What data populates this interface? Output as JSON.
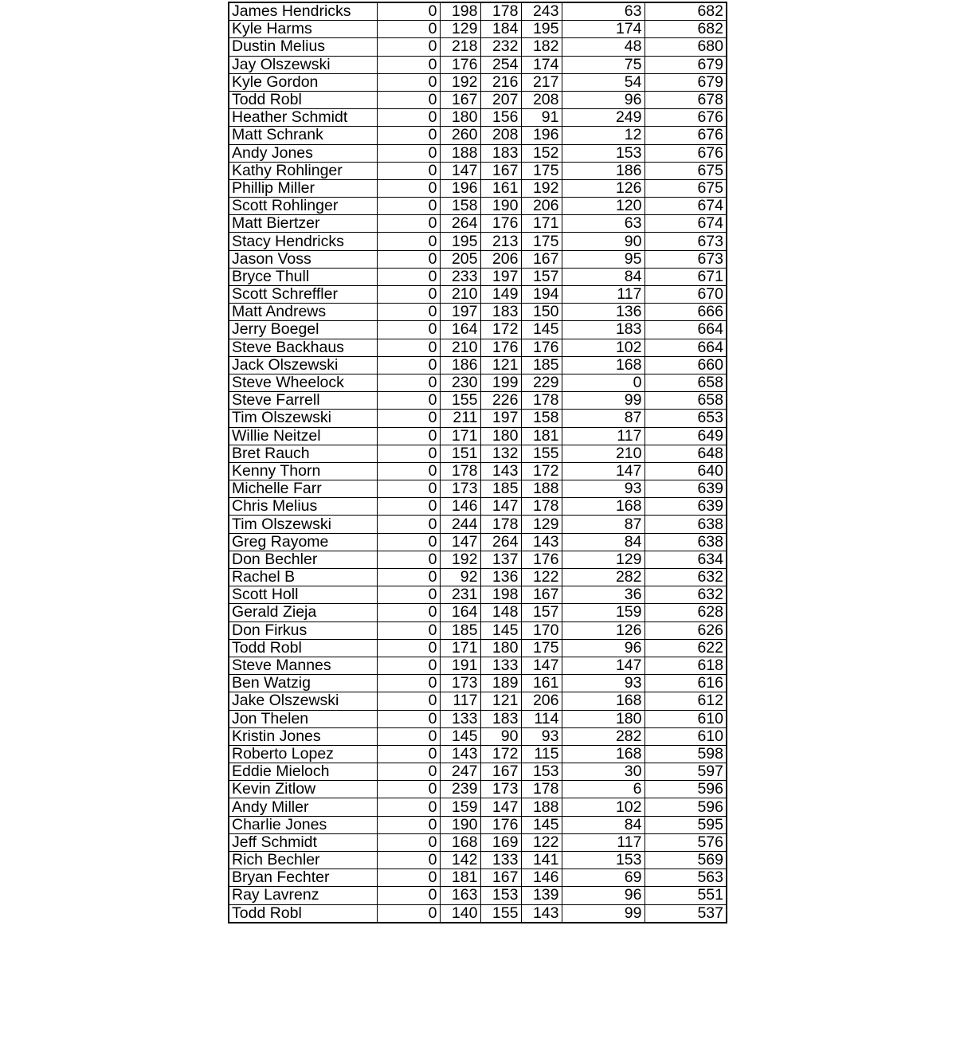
{
  "rows": [
    [
      "James Hendricks",
      0,
      198,
      178,
      243,
      63,
      682
    ],
    [
      "Kyle Harms",
      0,
      129,
      184,
      195,
      174,
      682
    ],
    [
      "Dustin Melius",
      0,
      218,
      232,
      182,
      48,
      680
    ],
    [
      "Jay Olszewski",
      0,
      176,
      254,
      174,
      75,
      679
    ],
    [
      "Kyle Gordon",
      0,
      192,
      216,
      217,
      54,
      679
    ],
    [
      "Todd Robl",
      0,
      167,
      207,
      208,
      96,
      678
    ],
    [
      "Heather Schmidt",
      0,
      180,
      156,
      91,
      249,
      676
    ],
    [
      "Matt Schrank",
      0,
      260,
      208,
      196,
      12,
      676
    ],
    [
      "Andy Jones",
      0,
      188,
      183,
      152,
      153,
      676
    ],
    [
      "Kathy Rohlinger",
      0,
      147,
      167,
      175,
      186,
      675
    ],
    [
      "Phillip Miller",
      0,
      196,
      161,
      192,
      126,
      675
    ],
    [
      "Scott Rohlinger",
      0,
      158,
      190,
      206,
      120,
      674
    ],
    [
      "Matt Biertzer",
      0,
      264,
      176,
      171,
      63,
      674
    ],
    [
      "Stacy Hendricks",
      0,
      195,
      213,
      175,
      90,
      673
    ],
    [
      "Jason Voss",
      0,
      205,
      206,
      167,
      95,
      673
    ],
    [
      "Bryce Thull",
      0,
      233,
      197,
      157,
      84,
      671
    ],
    [
      "Scott Schreffler",
      0,
      210,
      149,
      194,
      117,
      670
    ],
    [
      "Matt Andrews",
      0,
      197,
      183,
      150,
      136,
      666
    ],
    [
      "Jerry Boegel",
      0,
      164,
      172,
      145,
      183,
      664
    ],
    [
      "Steve Backhaus",
      0,
      210,
      176,
      176,
      102,
      664
    ],
    [
      "Jack Olszewski",
      0,
      186,
      121,
      185,
      168,
      660
    ],
    [
      "Steve Wheelock",
      0,
      230,
      199,
      229,
      0,
      658
    ],
    [
      "Steve Farrell",
      0,
      155,
      226,
      178,
      99,
      658
    ],
    [
      "Tim Olszewski",
      0,
      211,
      197,
      158,
      87,
      653
    ],
    [
      "Willie Neitzel",
      0,
      171,
      180,
      181,
      117,
      649
    ],
    [
      "Bret Rauch",
      0,
      151,
      132,
      155,
      210,
      648
    ],
    [
      "Kenny Thorn",
      0,
      178,
      143,
      172,
      147,
      640
    ],
    [
      "Michelle Farr",
      0,
      173,
      185,
      188,
      93,
      639
    ],
    [
      "Chris Melius",
      0,
      146,
      147,
      178,
      168,
      639
    ],
    [
      "Tim Olszewski",
      0,
      244,
      178,
      129,
      87,
      638
    ],
    [
      "Greg Rayome",
      0,
      147,
      264,
      143,
      84,
      638
    ],
    [
      "Don Bechler",
      0,
      192,
      137,
      176,
      129,
      634
    ],
    [
      "Rachel B",
      0,
      92,
      136,
      122,
      282,
      632
    ],
    [
      "Scott Holl",
      0,
      231,
      198,
      167,
      36,
      632
    ],
    [
      "Gerald Zieja",
      0,
      164,
      148,
      157,
      159,
      628
    ],
    [
      "Don Firkus",
      0,
      185,
      145,
      170,
      126,
      626
    ],
    [
      "Todd Robl",
      0,
      171,
      180,
      175,
      96,
      622
    ],
    [
      "Steve Mannes",
      0,
      191,
      133,
      147,
      147,
      618
    ],
    [
      "Ben Watzig",
      0,
      173,
      189,
      161,
      93,
      616
    ],
    [
      "Jake Olszewski",
      0,
      117,
      121,
      206,
      168,
      612
    ],
    [
      "Jon Thelen",
      0,
      133,
      183,
      114,
      180,
      610
    ],
    [
      "Kristin Jones",
      0,
      145,
      90,
      93,
      282,
      610
    ],
    [
      "Roberto Lopez",
      0,
      143,
      172,
      115,
      168,
      598
    ],
    [
      "Eddie Mieloch",
      0,
      247,
      167,
      153,
      30,
      597
    ],
    [
      "Kevin Zitlow",
      0,
      239,
      173,
      178,
      6,
      596
    ],
    [
      "Andy Miller",
      0,
      159,
      147,
      188,
      102,
      596
    ],
    [
      "Charlie Jones",
      0,
      190,
      176,
      145,
      84,
      595
    ],
    [
      "Jeff Schmidt",
      0,
      168,
      169,
      122,
      117,
      576
    ],
    [
      "Rich Bechler",
      0,
      142,
      133,
      141,
      153,
      569
    ],
    [
      "Bryan Fechter",
      0,
      181,
      167,
      146,
      69,
      563
    ],
    [
      "Ray Lavrenz",
      0,
      163,
      153,
      139,
      96,
      551
    ],
    [
      "Todd Robl",
      0,
      140,
      155,
      143,
      99,
      537
    ]
  ]
}
